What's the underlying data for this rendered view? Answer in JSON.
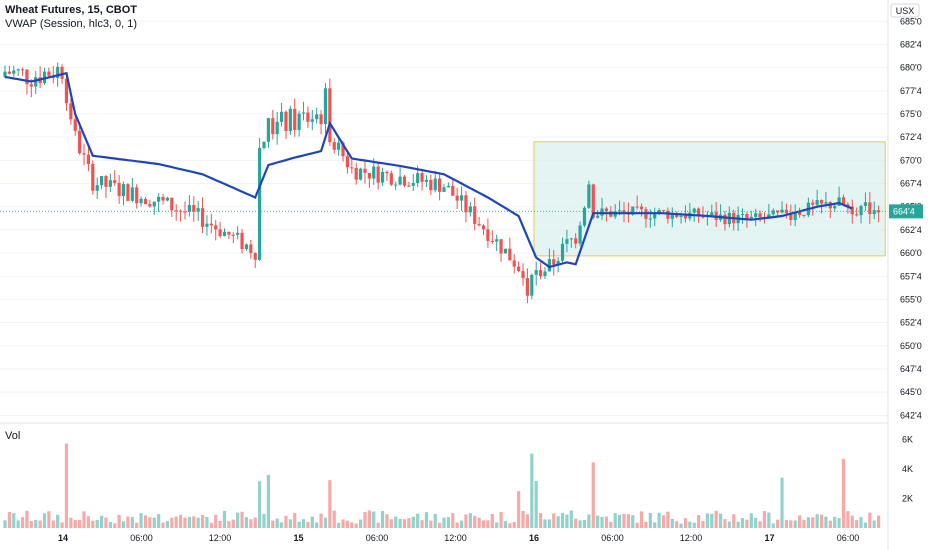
{
  "header": {
    "symbol": "Wheat Futures, 15, CBOT",
    "indicator": "VWAP (Session, hlc3, 0, 1)",
    "volume_label": "Vol",
    "currency": "USX",
    "price_badge": "664'4"
  },
  "colors": {
    "up": "#26a69a",
    "down": "#ef5350",
    "vwap": "#1e46b9",
    "box_fill": "#d7f0ec",
    "box_border": "#e6cc4d",
    "grid": "#f0f3fa"
  },
  "chart_data": {
    "type": "candlestick",
    "y_ticks": [
      "685'0",
      "682'4",
      "680'0",
      "677'4",
      "675'0",
      "672'4",
      "670'0",
      "667'4",
      "665'0",
      "662'4",
      "660'0",
      "657'4",
      "655'0",
      "652'4",
      "650'0",
      "647'4",
      "645'0",
      "642'4"
    ],
    "x_ticks": [
      "14",
      "06:00",
      "12:00",
      "15",
      "06:00",
      "12:00",
      "16",
      "06:00",
      "12:00",
      "17",
      "06:00"
    ],
    "volume_ticks": [
      "6K",
      "4K",
      "2K"
    ],
    "price_range": [
      642.0,
      686.0
    ],
    "vwap_anchor_points": [
      [
        0,
        679.0
      ],
      [
        6,
        678.5
      ],
      [
        14,
        679.4
      ],
      [
        16,
        675.0
      ],
      [
        20,
        670.5
      ],
      [
        35,
        669.6
      ],
      [
        45,
        668.5
      ],
      [
        57,
        666.0
      ],
      [
        60,
        669.5
      ],
      [
        66,
        670.3
      ],
      [
        72,
        671.0
      ],
      [
        74,
        674.0
      ],
      [
        79,
        670.2
      ],
      [
        90,
        669.4
      ],
      [
        100,
        668.5
      ],
      [
        110,
        666.0
      ],
      [
        117,
        664.0
      ],
      [
        121,
        659.5
      ],
      [
        124,
        658.5
      ],
      [
        128,
        659.0
      ],
      [
        130,
        658.8
      ],
      [
        134,
        664.3
      ],
      [
        150,
        664.3
      ],
      [
        160,
        664.0
      ],
      [
        170,
        663.6
      ],
      [
        177,
        664.0
      ],
      [
        185,
        665.0
      ],
      [
        190,
        665.4
      ],
      [
        193,
        664.8
      ]
    ],
    "highlight_box": {
      "x_from": 120.5,
      "x_to": 200.5,
      "price_top": 672.0,
      "price_bottom": 659.7
    },
    "volume_range": [
      0,
      7000
    ]
  }
}
